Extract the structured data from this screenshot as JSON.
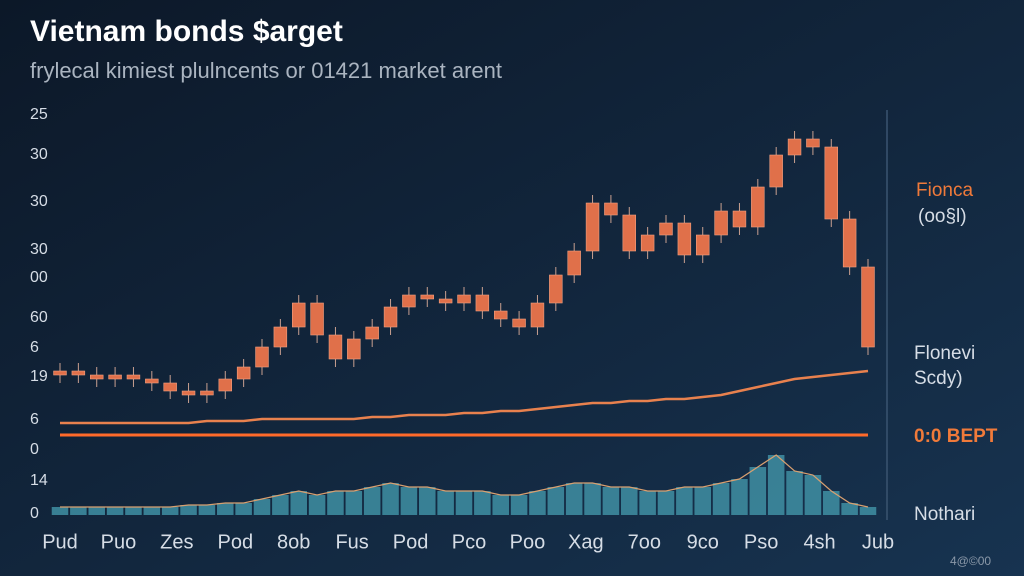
{
  "chart_data": {
    "type": "candlestick",
    "title": "Vietnam bonds $arget",
    "subtitle": "frylecal kimiest plulncents or 01421 market arent",
    "y_axis_labels": [
      "25",
      "30",
      "30",
      "30",
      "00",
      "60",
      "6",
      "19",
      "6",
      "0",
      "14",
      "0"
    ],
    "categories": [
      "Pud",
      "Puo",
      "Zes",
      "Pod",
      "8ob",
      "Fus",
      "Pod",
      "Pco",
      "Poo",
      "Xag",
      "7oo",
      "9co",
      "Pso",
      "4sh",
      "Jub"
    ],
    "ylim": [
      0,
      100
    ],
    "candles": {
      "color": "#e0704a",
      "open": [
        35,
        36,
        35,
        34,
        35,
        34,
        33,
        31,
        30,
        31,
        34,
        37,
        42,
        47,
        53,
        45,
        39,
        44,
        47,
        52,
        55,
        54,
        53,
        55,
        51,
        49,
        47,
        53,
        60,
        66,
        78,
        75,
        66,
        70,
        73,
        65,
        70,
        76,
        72,
        82,
        90,
        94,
        92,
        74,
        62
      ],
      "close": [
        36,
        35,
        34,
        35,
        34,
        33,
        31,
        30,
        31,
        34,
        37,
        42,
        47,
        53,
        45,
        39,
        44,
        47,
        52,
        55,
        54,
        53,
        55,
        51,
        49,
        47,
        53,
        60,
        66,
        78,
        75,
        66,
        70,
        73,
        65,
        70,
        76,
        72,
        82,
        90,
        94,
        92,
        74,
        62,
        42
      ]
    },
    "trend": {
      "color": "#e8814e",
      "values": [
        23,
        23,
        23,
        23,
        23,
        23,
        23,
        23,
        23.5,
        23.5,
        23.5,
        24,
        24,
        24,
        24,
        24,
        24,
        24.5,
        24.5,
        25,
        25,
        25,
        25.5,
        25.5,
        26,
        26,
        26.5,
        27,
        27.5,
        28,
        28,
        28.5,
        28.5,
        29,
        29,
        29.5,
        30,
        31,
        32,
        33,
        34,
        34.5,
        35,
        35.5,
        36
      ]
    },
    "target_level": {
      "color": "#ff6a2a",
      "value": 20
    },
    "volume": {
      "color": "#3f8fa3",
      "values": [
        2,
        2,
        2,
        2,
        2,
        2,
        2,
        2.5,
        2.5,
        3,
        3,
        4,
        5,
        6,
        5,
        6,
        6,
        7,
        8,
        7,
        7,
        6,
        6,
        6,
        5,
        5,
        6,
        7,
        8,
        8,
        7,
        7,
        6,
        6,
        7,
        7,
        8,
        9,
        12,
        15,
        11,
        10,
        6,
        3,
        2
      ]
    },
    "annotations": [
      "Fionca",
      "(oo§l)",
      "Flonevi",
      "Scdy)",
      "0:0 BEPT",
      "Nothari",
      "4@©00"
    ]
  }
}
